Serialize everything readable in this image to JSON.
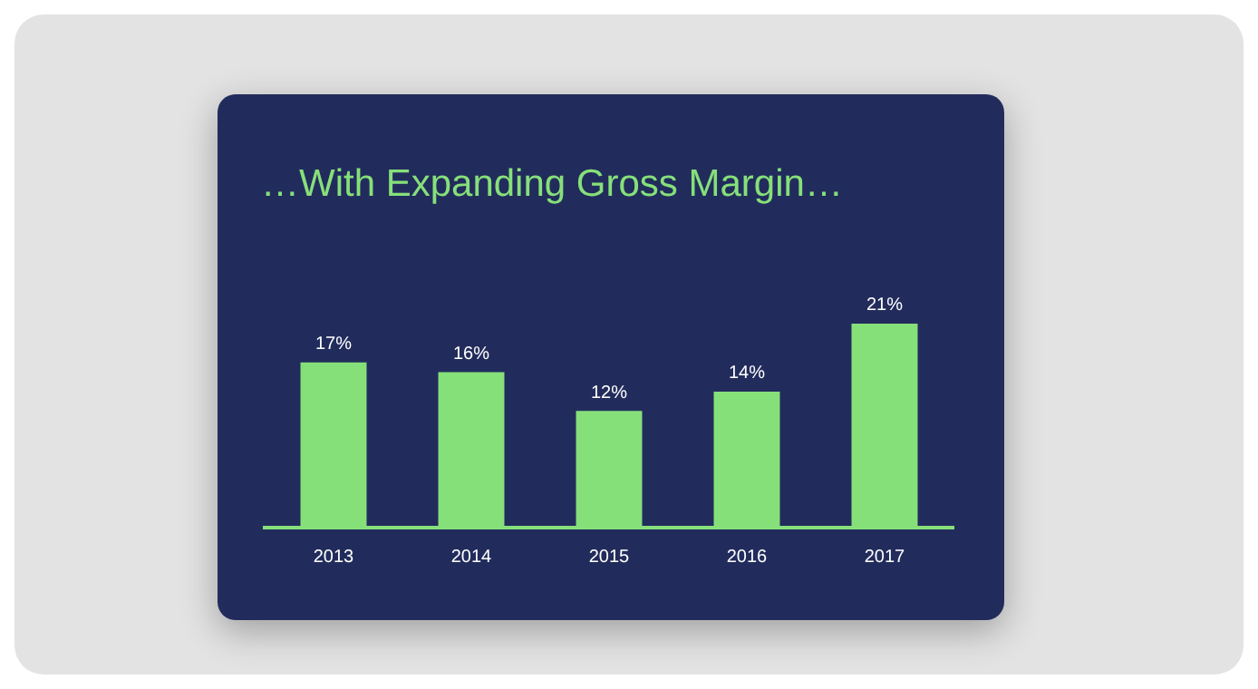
{
  "chart_data": {
    "type": "bar",
    "title": "…With Expanding Gross Margin…",
    "categories": [
      "2013",
      "2014",
      "2015",
      "2016",
      "2017"
    ],
    "values": [
      17,
      16,
      12,
      14,
      21
    ],
    "color": "#86e07a",
    "data_labels": true,
    "value_labels": [
      "17%",
      "16%",
      "12%",
      "14%",
      "21%"
    ],
    "tick_labels": "x",
    "grid": false,
    "legend": false
  }
}
